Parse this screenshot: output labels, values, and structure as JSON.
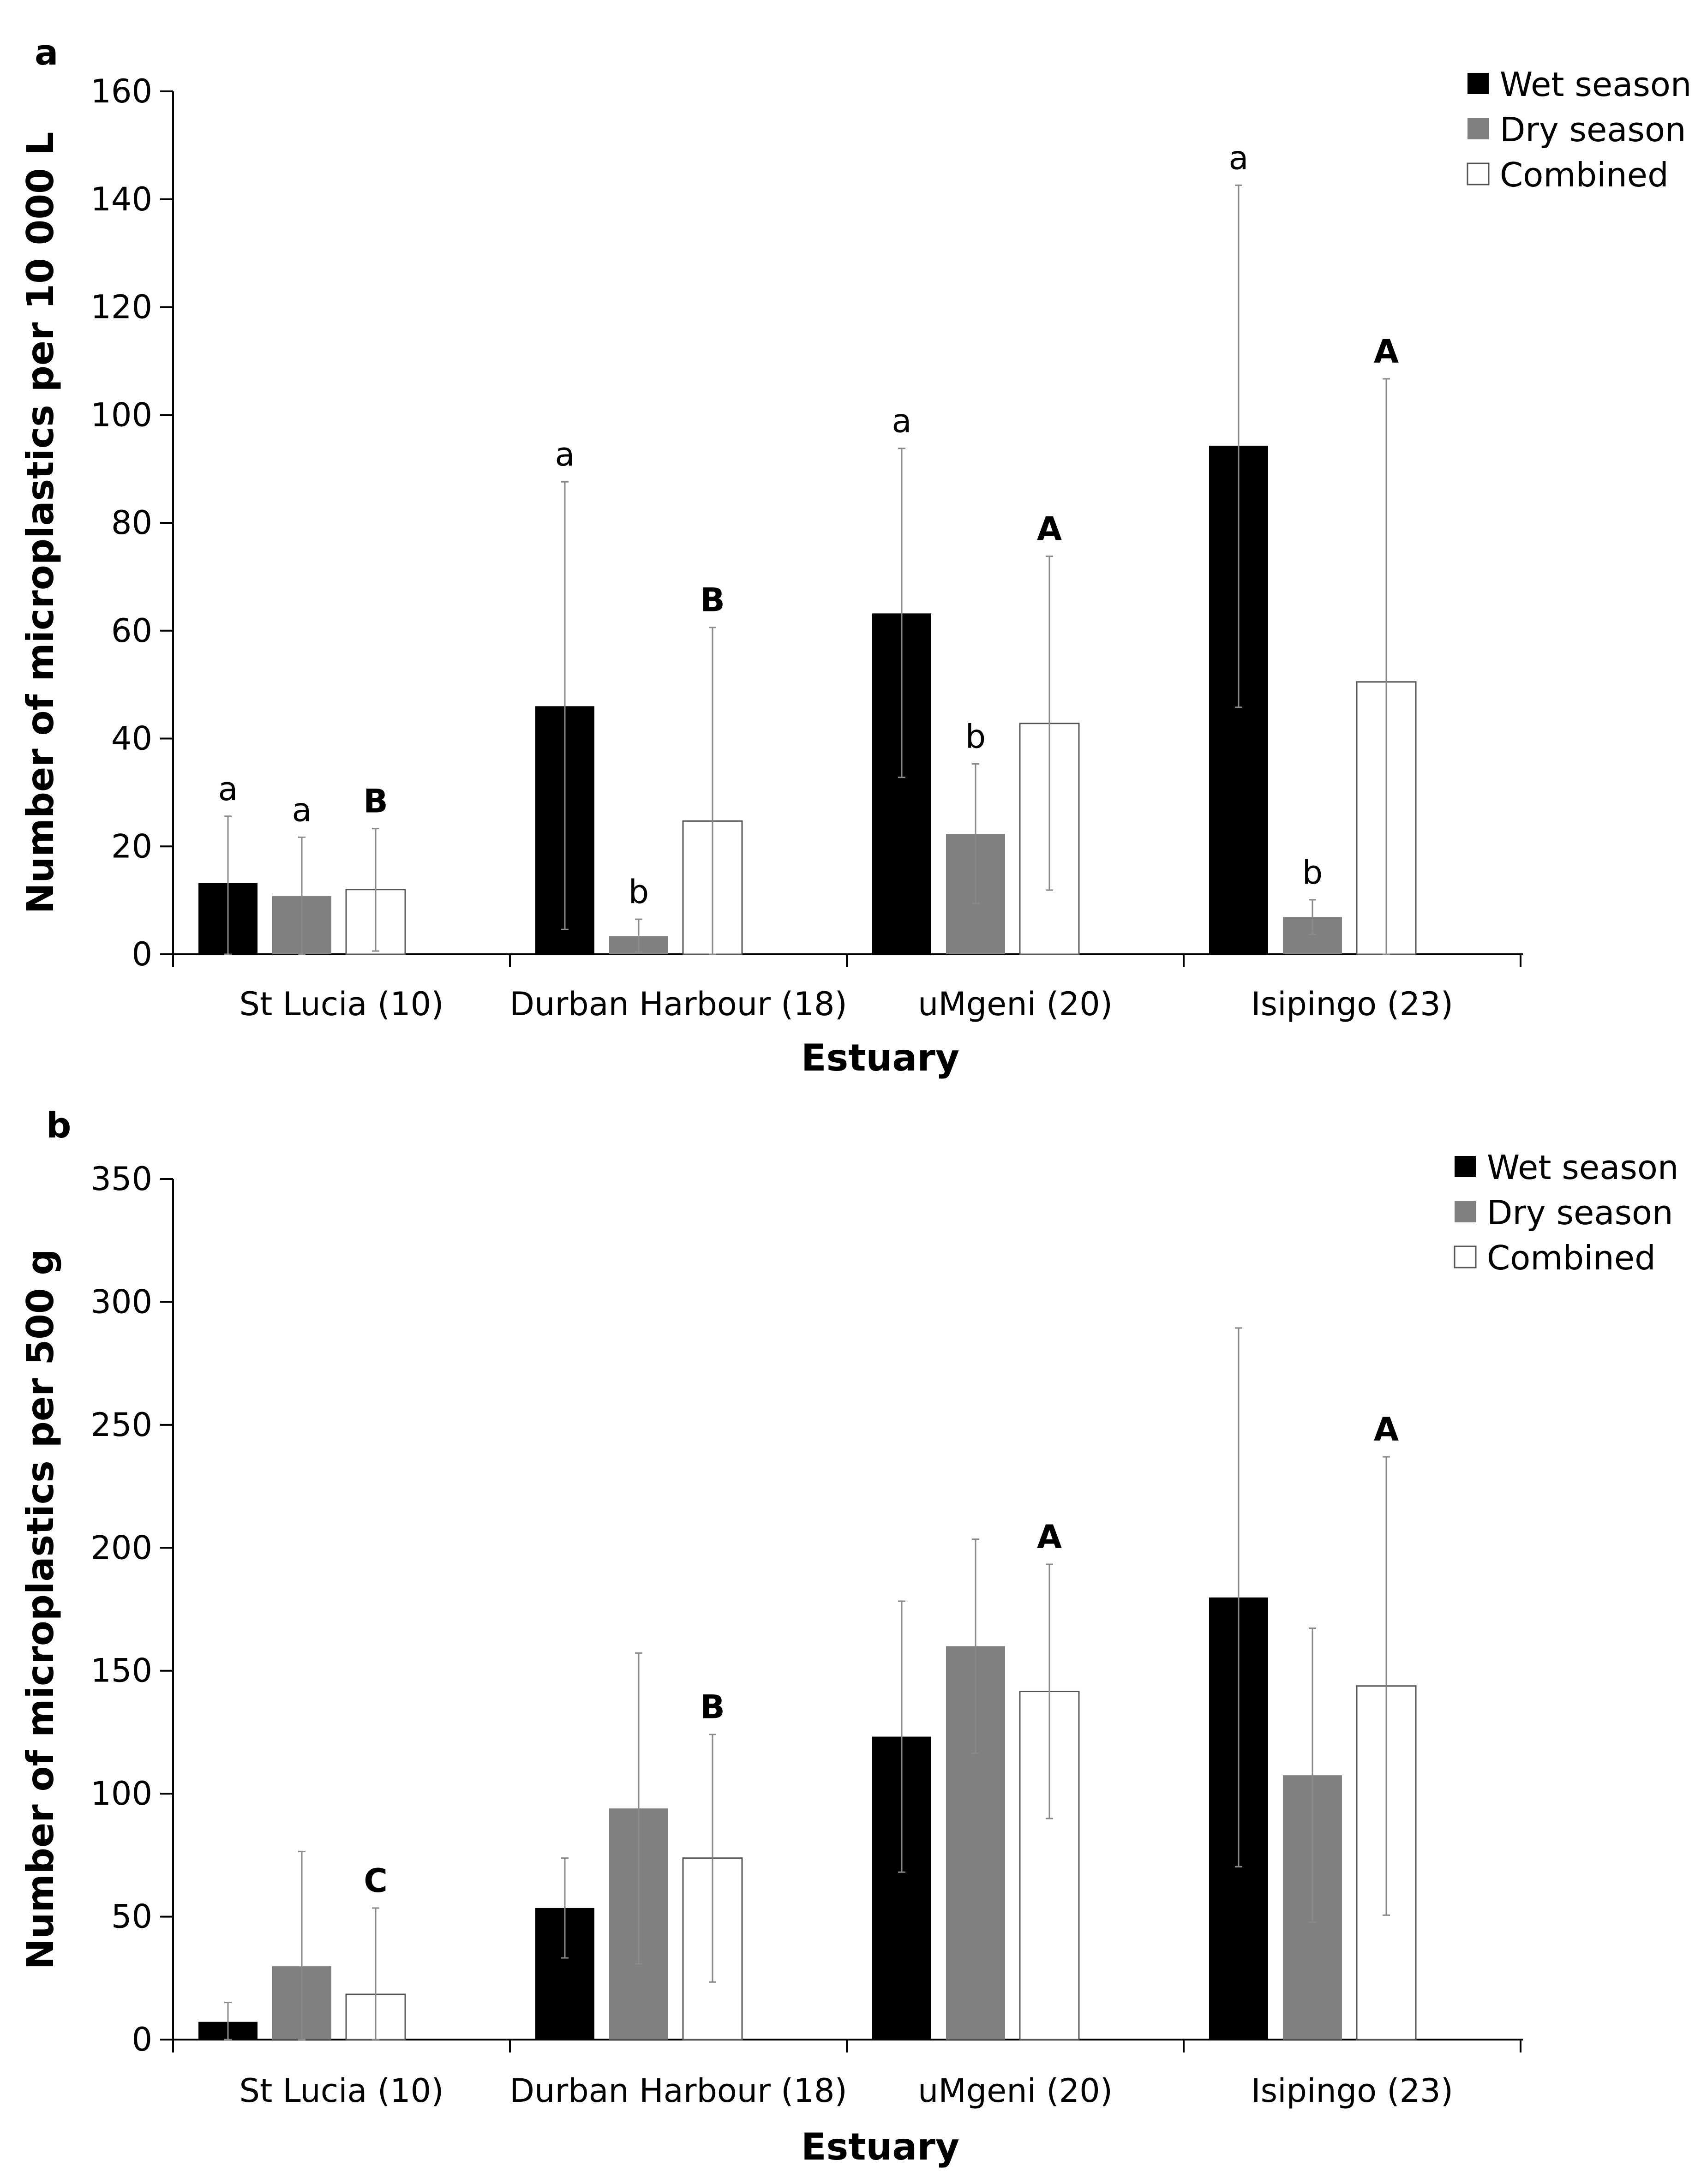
{
  "chart_data": [
    {
      "panel": "a",
      "type": "bar",
      "xlabel": "Estuary",
      "ylabel": "Number of microplastics per 10 000 L",
      "ylim": [
        0,
        160
      ],
      "yticks": [
        0,
        20,
        40,
        60,
        80,
        100,
        120,
        140,
        160
      ],
      "categories": [
        "St Lucia (10)",
        "Durban Harbour (18)",
        "uMgeni (20)",
        "Isipingo (23)"
      ],
      "legend_position": "top-right",
      "series": [
        {
          "name": "Wet season",
          "color": "#000000",
          "values": [
            13.2,
            46.0,
            63.2,
            94.3
          ],
          "err_high": [
            25.6,
            87.6,
            93.8,
            142.6
          ],
          "err_low": [
            0,
            4.6,
            32.8,
            45.8
          ],
          "letters": [
            "a",
            "a",
            "a",
            "a"
          ]
        },
        {
          "name": "Dry season",
          "color": "#808080",
          "values": [
            10.8,
            3.4,
            22.3,
            6.9
          ],
          "err_high": [
            21.7,
            6.5,
            35.3,
            10.1
          ],
          "err_low": [
            0,
            0.4,
            9.4,
            3.7
          ],
          "letters": [
            "a",
            "b",
            "b",
            "b"
          ]
        },
        {
          "name": "Combined",
          "color": "#ffffff",
          "values": [
            12.0,
            24.7,
            42.8,
            50.5
          ],
          "err_high": [
            23.3,
            60.6,
            73.8,
            106.7
          ],
          "err_low": [
            0.6,
            0,
            11.9,
            0
          ],
          "letters": [
            "B",
            "B",
            "A",
            "A"
          ]
        }
      ]
    },
    {
      "panel": "b",
      "type": "bar",
      "xlabel": "Estuary",
      "ylabel": "Number of microplastics per 500 g",
      "ylim": [
        0,
        350
      ],
      "yticks": [
        0,
        50,
        100,
        150,
        200,
        250,
        300,
        350
      ],
      "categories": [
        "St Lucia (10)",
        "Durban Harbour (18)",
        "uMgeni (20)",
        "Isipingo (23)"
      ],
      "legend_position": "top-right",
      "series": [
        {
          "name": "Wet season",
          "color": "#000000",
          "values": [
            7.2,
            53.5,
            123.2,
            179.8
          ],
          "err_high": [
            15.1,
            73.8,
            178.3,
            289.4
          ],
          "err_low": [
            0,
            33.2,
            68.1,
            70.3
          ],
          "letters": [
            "",
            "",
            "",
            ""
          ]
        },
        {
          "name": "Dry season",
          "color": "#808080",
          "values": [
            29.8,
            94.0,
            160.0,
            107.5
          ],
          "err_high": [
            76.5,
            157.2,
            203.5,
            167.3
          ],
          "err_low": [
            0,
            30.8,
            116.4,
            47.7
          ],
          "letters": [
            "",
            "",
            "",
            ""
          ]
        },
        {
          "name": "Combined",
          "color": "#ffffff",
          "values": [
            18.4,
            73.8,
            141.6,
            143.8
          ],
          "err_high": [
            53.5,
            124.1,
            193.3,
            237.0
          ],
          "err_low": [
            0,
            23.4,
            89.9,
            50.6
          ],
          "letters": [
            "C",
            "B",
            "A",
            "A"
          ]
        }
      ]
    }
  ]
}
